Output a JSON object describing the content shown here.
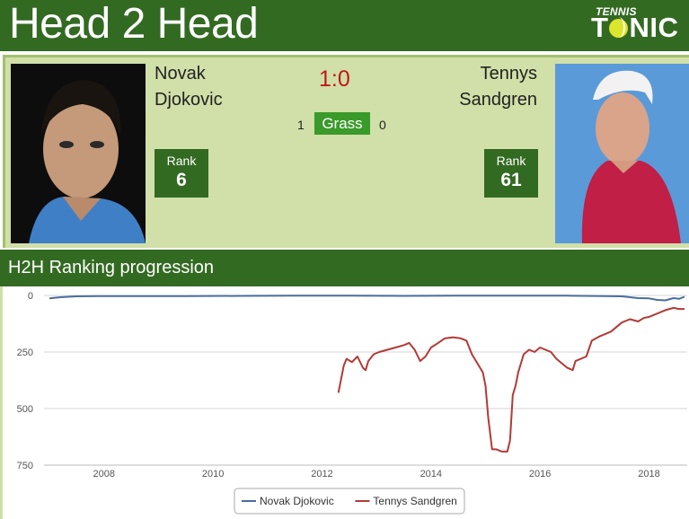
{
  "header": {
    "title": "Head 2 Head"
  },
  "logo": {
    "small": "TENNIS",
    "big_1": "T",
    "big_2": "NIC"
  },
  "match": {
    "player_left": {
      "first": "Novak",
      "last": "Djokovic",
      "rank_label": "Rank",
      "rank": "6"
    },
    "player_right": {
      "first": "Tennys",
      "last": "Sandgren",
      "rank_label": "Rank",
      "rank": "61"
    },
    "score": "1:0",
    "surface": {
      "name": "Grass",
      "left": "1",
      "right": "0"
    }
  },
  "section": {
    "title": "H2H Ranking progression"
  },
  "chart_data": {
    "type": "line",
    "x_ticks": [
      "2008",
      "2010",
      "2012",
      "2014",
      "2016",
      "2018"
    ],
    "y_ticks": [
      "0",
      "250",
      "500",
      "750"
    ],
    "ylim": [
      0,
      750
    ],
    "y_reversed": true,
    "xlim": [
      2006.9,
      2018.7
    ],
    "series": [
      {
        "name": "Novak Djokovic",
        "color": "#4a6d9b",
        "points": [
          [
            2007.0,
            13
          ],
          [
            2007.2,
            8
          ],
          [
            2007.5,
            4
          ],
          [
            2007.9,
            3
          ],
          [
            2008.5,
            3
          ],
          [
            2009.5,
            3
          ],
          [
            2010.5,
            2
          ],
          [
            2011.5,
            1
          ],
          [
            2012.5,
            1
          ],
          [
            2013.5,
            2
          ],
          [
            2014.5,
            1
          ],
          [
            2015.5,
            1
          ],
          [
            2016.5,
            1
          ],
          [
            2016.8,
            2
          ],
          [
            2017.2,
            3
          ],
          [
            2017.5,
            4
          ],
          [
            2017.8,
            12
          ],
          [
            2018.0,
            13
          ],
          [
            2018.15,
            20
          ],
          [
            2018.3,
            22
          ],
          [
            2018.45,
            12
          ],
          [
            2018.55,
            15
          ],
          [
            2018.65,
            6
          ]
        ]
      },
      {
        "name": "Tennys Sandgren",
        "color": "#b23a36",
        "points": [
          [
            2012.3,
            430
          ],
          [
            2012.4,
            310
          ],
          [
            2012.45,
            280
          ],
          [
            2012.55,
            295
          ],
          [
            2012.65,
            270
          ],
          [
            2012.75,
            320
          ],
          [
            2012.8,
            330
          ],
          [
            2012.85,
            290
          ],
          [
            2012.95,
            260
          ],
          [
            2013.05,
            250
          ],
          [
            2013.2,
            240
          ],
          [
            2013.35,
            230
          ],
          [
            2013.5,
            220
          ],
          [
            2013.6,
            210
          ],
          [
            2013.7,
            240
          ],
          [
            2013.8,
            290
          ],
          [
            2013.9,
            270
          ],
          [
            2014.0,
            230
          ],
          [
            2014.1,
            215
          ],
          [
            2014.25,
            190
          ],
          [
            2014.4,
            185
          ],
          [
            2014.55,
            190
          ],
          [
            2014.65,
            200
          ],
          [
            2014.75,
            260
          ],
          [
            2014.85,
            300
          ],
          [
            2014.95,
            340
          ],
          [
            2015.0,
            400
          ],
          [
            2015.05,
            540
          ],
          [
            2015.12,
            680
          ],
          [
            2015.2,
            680
          ],
          [
            2015.3,
            690
          ],
          [
            2015.4,
            690
          ],
          [
            2015.45,
            640
          ],
          [
            2015.5,
            440
          ],
          [
            2015.55,
            400
          ],
          [
            2015.6,
            340
          ],
          [
            2015.7,
            260
          ],
          [
            2015.8,
            240
          ],
          [
            2015.9,
            250
          ],
          [
            2016.0,
            230
          ],
          [
            2016.1,
            240
          ],
          [
            2016.2,
            250
          ],
          [
            2016.3,
            280
          ],
          [
            2016.4,
            300
          ],
          [
            2016.5,
            320
          ],
          [
            2016.6,
            330
          ],
          [
            2016.65,
            290
          ],
          [
            2016.75,
            280
          ],
          [
            2016.85,
            270
          ],
          [
            2016.95,
            200
          ],
          [
            2017.1,
            180
          ],
          [
            2017.3,
            160
          ],
          [
            2017.5,
            120
          ],
          [
            2017.65,
            105
          ],
          [
            2017.8,
            115
          ],
          [
            2017.9,
            100
          ],
          [
            2018.0,
            95
          ],
          [
            2018.15,
            80
          ],
          [
            2018.3,
            65
          ],
          [
            2018.45,
            55
          ],
          [
            2018.55,
            60
          ],
          [
            2018.65,
            60
          ]
        ]
      }
    ]
  }
}
